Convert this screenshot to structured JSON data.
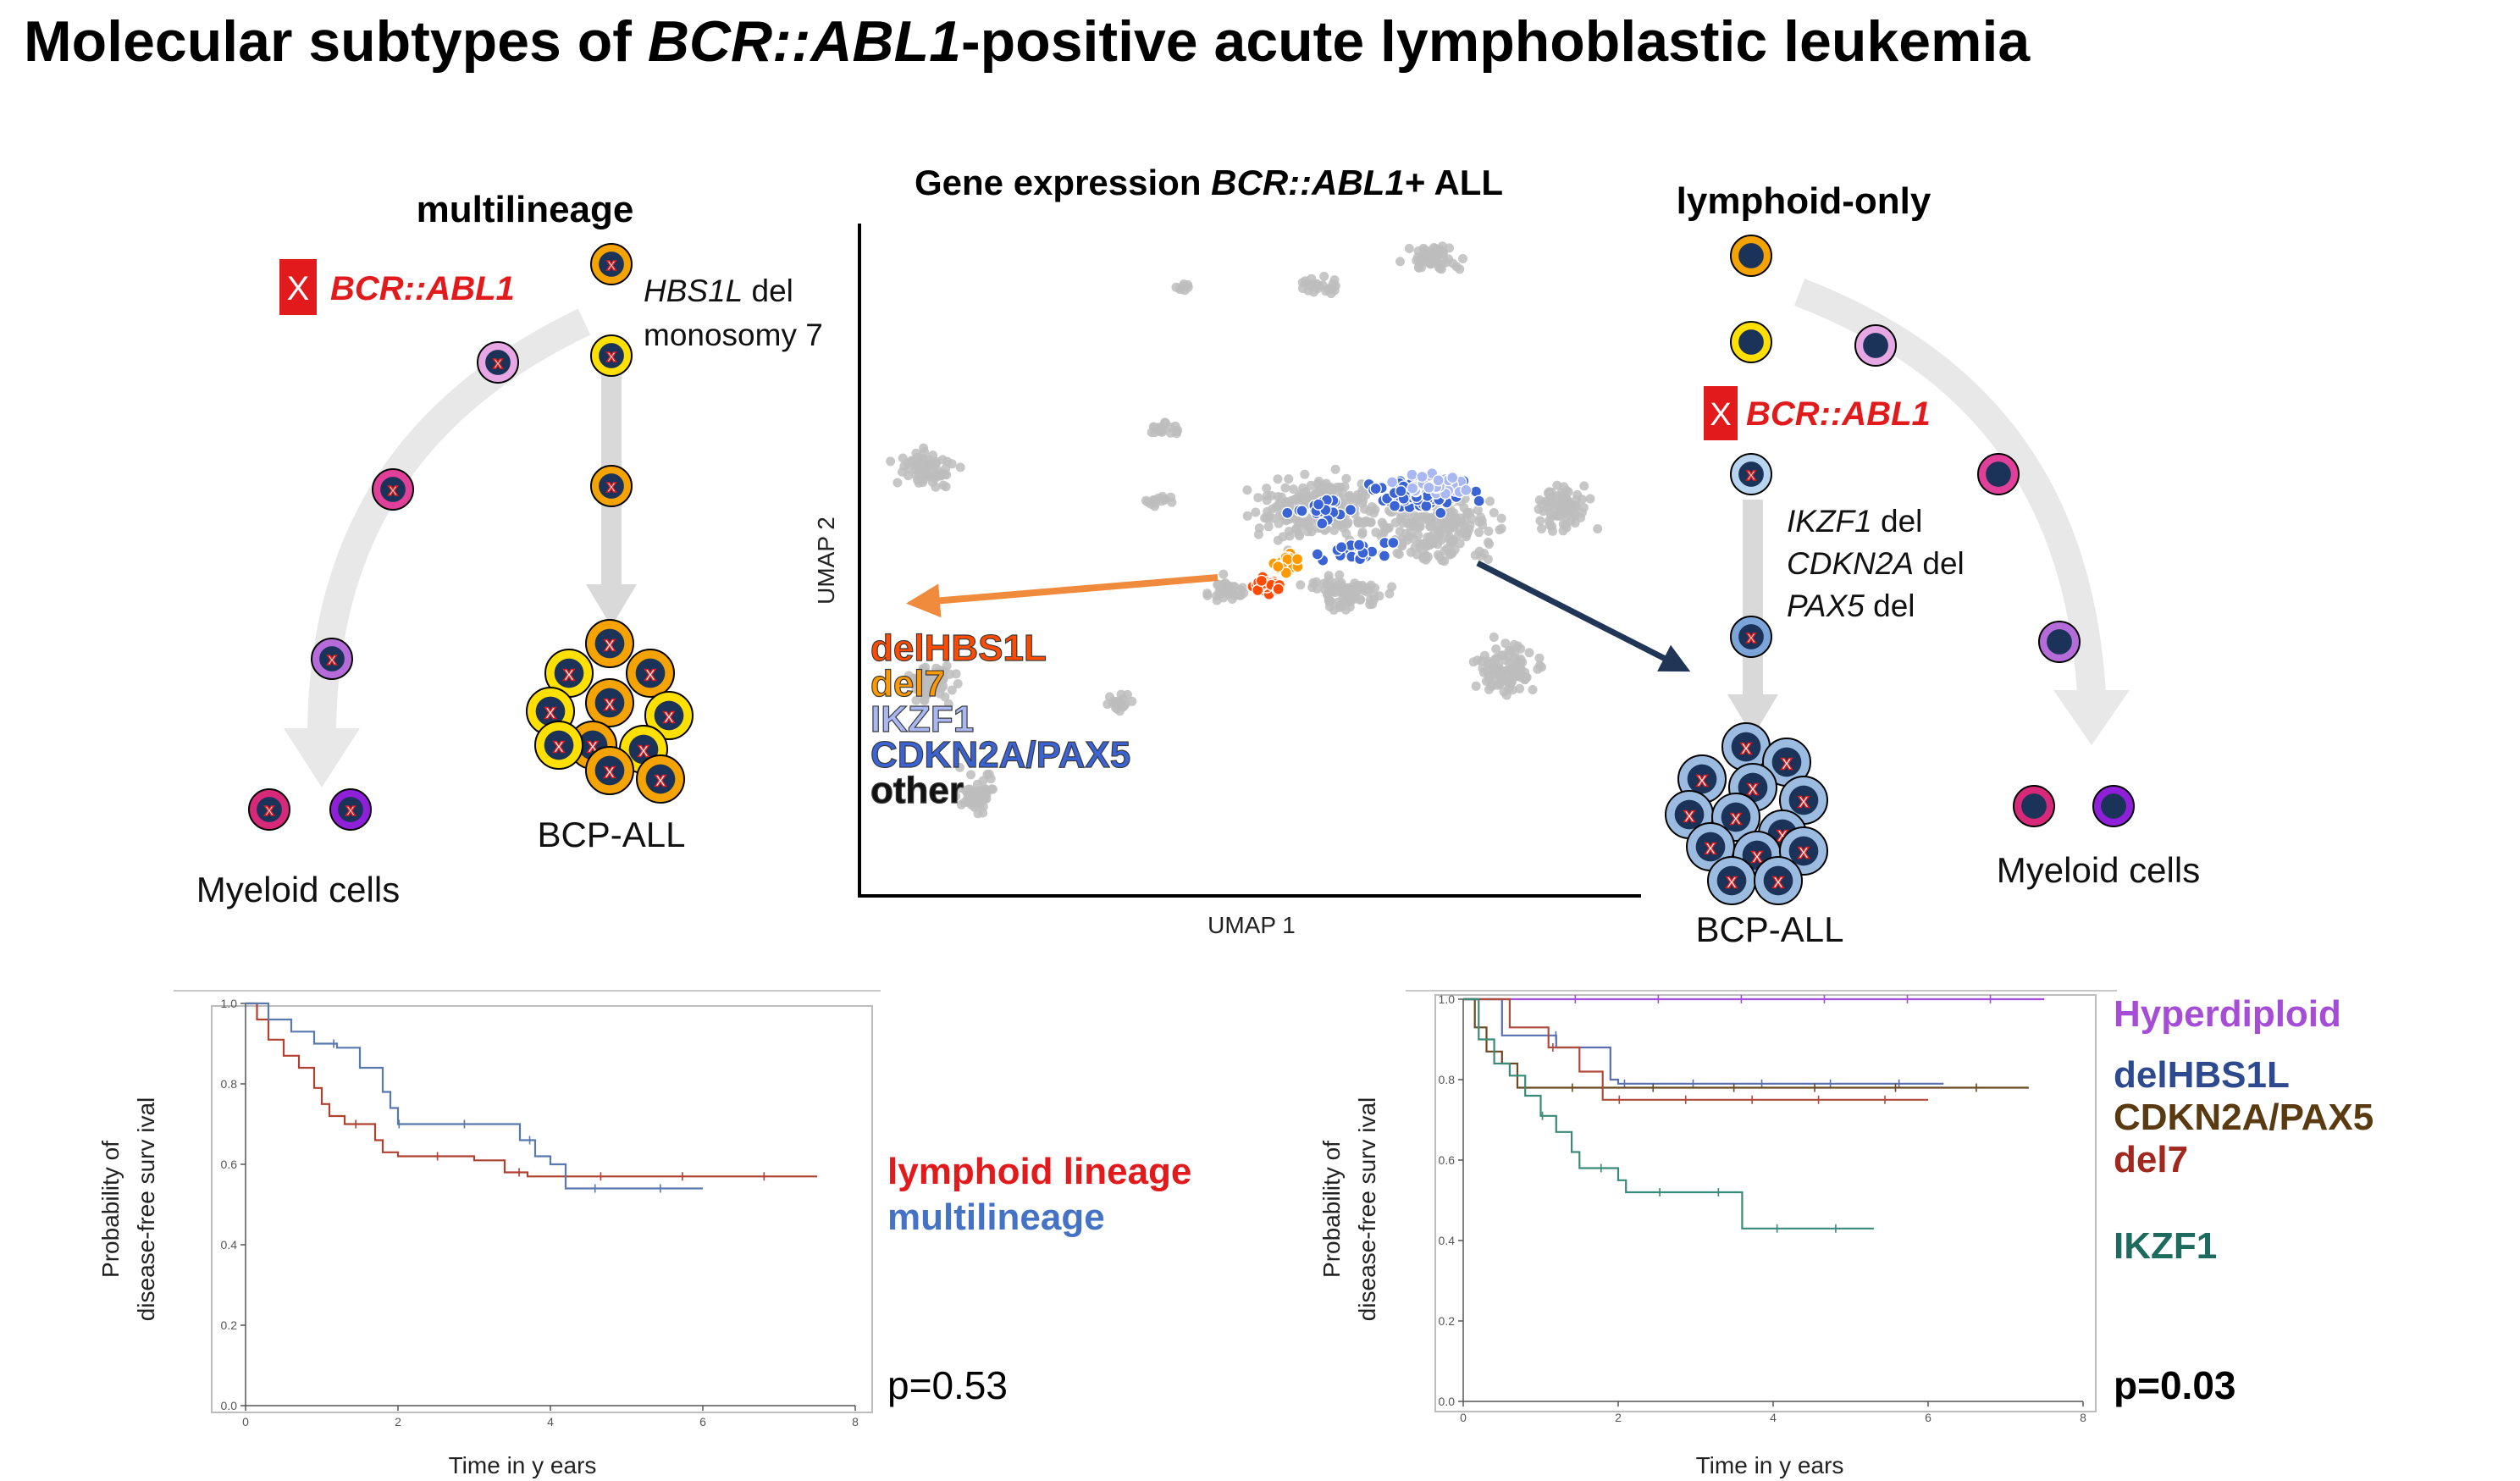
{
  "title": {
    "prefix": "Molecular subtypes of ",
    "gene": "BCR::ABL1",
    "suffix": "-positive acute lymphoblastic leukemia"
  },
  "left_panel": {
    "heading": "multilineage",
    "fusion_label": "BCR::ABL1",
    "note_line1_gene": "HBS1L",
    "note_line1_rest": " del",
    "note_line2": "monosomy  7",
    "myeloid_label": "Myeloid  cells",
    "bcp_label": "BCP-ALL"
  },
  "umap": {
    "title_prefix": "Gene expression ",
    "title_gene": "BCR::ABL1",
    "title_suffix": "+ ALL",
    "xlabel": "UMAP 1",
    "ylabel": "UMAP 2",
    "legend": [
      {
        "name": "delHBS1L",
        "color": "#ff4a00"
      },
      {
        "name": "del7",
        "color": "#ff9900"
      },
      {
        "name": "IKZF1",
        "color": "#a9b8f2"
      },
      {
        "name": "CDKN2A/PAX5",
        "color": "#3a63d6"
      },
      {
        "name": "other",
        "color": "#111111"
      }
    ]
  },
  "right_panel": {
    "heading": "lymphoid-only",
    "fusion_label": "BCR::ABL1",
    "notes": [
      {
        "gene": "IKZF1",
        "rest": " del"
      },
      {
        "gene": "CDKN2A",
        "rest": "  del"
      },
      {
        "gene": "PAX5",
        "rest": " del"
      }
    ],
    "myeloid_label": "Myeloid  cells",
    "bcp_label": "BCP-ALL"
  },
  "colors": {
    "fusion_red": "#e31a1c",
    "arrow_orange": "#f08a3c",
    "arrow_navy": "#1f3657",
    "cell_core": "#1b3358"
  },
  "km_left": {
    "xlabel": "Time in y ears",
    "ylabel_line1": "Probability of",
    "ylabel_line2": "disease-free surv ival",
    "x_ticks": [
      "0",
      "2",
      "4",
      "6",
      "8"
    ],
    "y_ticks": [
      "0.0",
      "0.2",
      "0.4",
      "0.6",
      "0.8",
      "1.0"
    ],
    "legend": [
      {
        "name": "lymphoid lineage",
        "color": "#e31a1c"
      },
      {
        "name": "multilineage",
        "color": "#4472c4"
      }
    ],
    "p_value": "p=0.53"
  },
  "km_right": {
    "xlabel": "Time in y ears",
    "ylabel_line1": "Probability of",
    "ylabel_line2": "disease-free surv ival",
    "x_ticks": [
      "0",
      "2",
      "4",
      "6",
      "8"
    ],
    "y_ticks": [
      "0.0",
      "0.2",
      "0.4",
      "0.6",
      "0.8",
      "1.0"
    ],
    "legend": [
      {
        "name": "Hyperdiploid",
        "color": "#a64dd8"
      },
      {
        "name": "delHBS1L",
        "color": "#2e4a8e"
      },
      {
        "name": "CDKN2A/PAX5",
        "color": "#5a3a10"
      },
      {
        "name": "del7",
        "color": "#a0281e"
      },
      {
        "name": "IKZF1",
        "color": "#1d6b5e"
      }
    ],
    "p_value": "p=0.03"
  },
  "chart_data": [
    {
      "type": "line",
      "xlabel": "Time in y ears",
      "ylabel": "Probability of disease-free surv ival",
      "xlim": [
        0,
        8
      ],
      "ylim": [
        0,
        1
      ],
      "series": [
        {
          "name": "lymphoid lineage",
          "color": "#b04030",
          "points": [
            [
              0,
              1.0
            ],
            [
              0.15,
              0.96
            ],
            [
              0.3,
              0.91
            ],
            [
              0.5,
              0.87
            ],
            [
              0.7,
              0.84
            ],
            [
              0.9,
              0.79
            ],
            [
              1.0,
              0.75
            ],
            [
              1.1,
              0.72
            ],
            [
              1.3,
              0.7
            ],
            [
              1.6,
              0.7
            ],
            [
              1.7,
              0.66
            ],
            [
              1.8,
              0.63
            ],
            [
              2.0,
              0.62
            ],
            [
              2.5,
              0.62
            ],
            [
              3.0,
              0.61
            ],
            [
              3.4,
              0.58
            ],
            [
              3.7,
              0.57
            ],
            [
              4.2,
              0.57
            ],
            [
              5.0,
              0.57
            ],
            [
              6.0,
              0.57
            ],
            [
              7.5,
              0.57
            ]
          ]
        },
        {
          "name": "multilineage",
          "color": "#5878b0",
          "points": [
            [
              0,
              1.0
            ],
            [
              0.3,
              0.96
            ],
            [
              0.6,
              0.93
            ],
            [
              0.9,
              0.9
            ],
            [
              1.2,
              0.89
            ],
            [
              1.5,
              0.84
            ],
            [
              1.8,
              0.78
            ],
            [
              1.9,
              0.74
            ],
            [
              2.0,
              0.7
            ],
            [
              3.0,
              0.7
            ],
            [
              3.6,
              0.66
            ],
            [
              3.8,
              0.62
            ],
            [
              4.0,
              0.6
            ],
            [
              4.2,
              0.54
            ],
            [
              5.0,
              0.54
            ],
            [
              6.0,
              0.54
            ]
          ]
        }
      ]
    },
    {
      "type": "line",
      "xlabel": "Time in y ears",
      "ylabel": "Probability of disease-free surv ival",
      "xlim": [
        0,
        8
      ],
      "ylim": [
        0,
        1
      ],
      "series": [
        {
          "name": "Hyperdiploid",
          "color": "#a64dd8",
          "points": [
            [
              0,
              1.0
            ],
            [
              7.5,
              1.0
            ]
          ]
        },
        {
          "name": "delHBS1L",
          "color": "#5870b0",
          "points": [
            [
              0,
              1.0
            ],
            [
              0.5,
              0.91
            ],
            [
              1.2,
              0.88
            ],
            [
              1.8,
              0.88
            ],
            [
              1.9,
              0.8
            ],
            [
              2.0,
              0.79
            ],
            [
              6.2,
              0.79
            ]
          ]
        },
        {
          "name": "CDKN2A/PAX5",
          "color": "#6a4a20",
          "points": [
            [
              0,
              1.0
            ],
            [
              0.15,
              0.93
            ],
            [
              0.3,
              0.87
            ],
            [
              0.5,
              0.84
            ],
            [
              0.7,
              0.78
            ],
            [
              1.0,
              0.78
            ],
            [
              7.3,
              0.78
            ]
          ]
        },
        {
          "name": "del7",
          "color": "#b04a3a",
          "points": [
            [
              0,
              1.0
            ],
            [
              0.6,
              0.93
            ],
            [
              1.1,
              0.88
            ],
            [
              1.5,
              0.82
            ],
            [
              1.8,
              0.75
            ],
            [
              6.0,
              0.75
            ]
          ]
        },
        {
          "name": "IKZF1",
          "color": "#3a8a7a",
          "points": [
            [
              0,
              1.0
            ],
            [
              0.2,
              0.9
            ],
            [
              0.4,
              0.84
            ],
            [
              0.6,
              0.81
            ],
            [
              0.8,
              0.76
            ],
            [
              1.0,
              0.71
            ],
            [
              1.2,
              0.67
            ],
            [
              1.4,
              0.62
            ],
            [
              1.5,
              0.58
            ],
            [
              2.0,
              0.55
            ],
            [
              2.1,
              0.52
            ],
            [
              3.6,
              0.52
            ],
            [
              3.6,
              0.43
            ],
            [
              5.3,
              0.43
            ]
          ]
        }
      ]
    }
  ]
}
